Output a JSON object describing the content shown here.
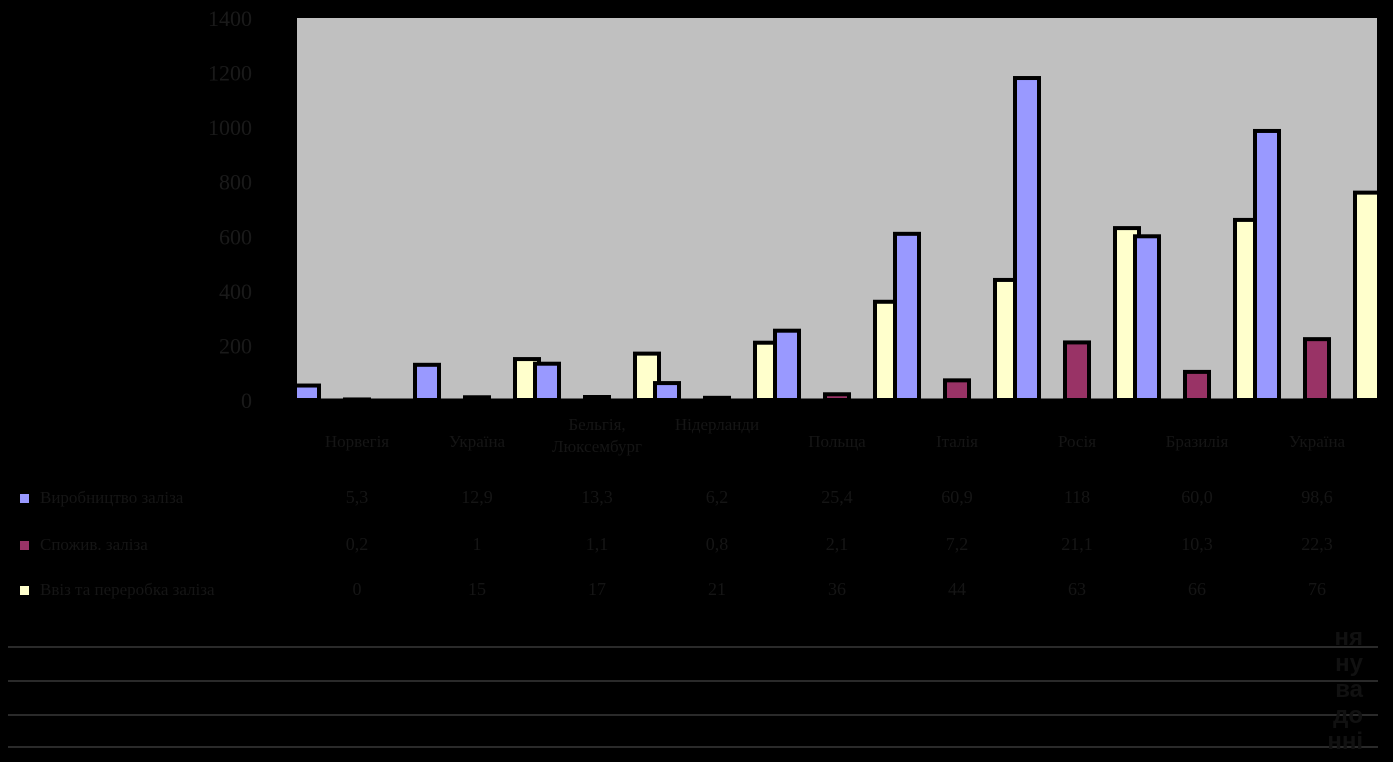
{
  "chart_data": {
    "type": "bar",
    "categories": [
      "Норвегія",
      "Україна",
      "Бельгія, Люксембург",
      "Нідерланди",
      "Польща",
      "Італія",
      "Росія",
      "Бразилія",
      "Україна"
    ],
    "category_lines": [
      [
        "Норвегія"
      ],
      [
        "Україна"
      ],
      [
        "Бельгія,",
        "Люксембург"
      ],
      [
        "Нідерланди",
        ""
      ],
      [
        "Польща"
      ],
      [
        "Італія"
      ],
      [
        "Росія"
      ],
      [
        "Бразилія"
      ],
      [
        "Україна"
      ]
    ],
    "series": [
      {
        "name": "Виробництво заліза",
        "color": "#9999ff",
        "values": [
          5.3,
          12.9,
          13.3,
          6.2,
          25.4,
          60.9,
          118,
          60,
          98.6
        ]
      },
      {
        "name": "Спожив. заліза",
        "color": "#993366",
        "values": [
          0.2,
          1,
          1.1,
          0.8,
          2.1,
          7.2,
          21.1,
          10.3,
          22.3
        ]
      },
      {
        "name": "Ввіз та переробка заліза",
        "color": "#ffffcc",
        "values": [
          0,
          15,
          17,
          21,
          36,
          44,
          63,
          66,
          76
        ]
      }
    ],
    "table": {
      "rows": [
        [
          "5,3",
          "12,9",
          "13,3",
          "6,2",
          "25,4",
          "60,9",
          "118",
          "60,0",
          "98,6"
        ],
        [
          "0,2",
          "1",
          "1,1",
          "0,8",
          "2,1",
          "7,2",
          "21,1",
          "10,3",
          "22,3"
        ],
        [
          "0",
          "15",
          "17",
          "21",
          "36",
          "44",
          "63",
          "66",
          "76"
        ]
      ]
    },
    "yticks": [
      "0",
      "200",
      "400",
      "600",
      "800",
      "1000",
      "1200",
      "1400"
    ],
    "ylim": [
      0,
      140
    ],
    "title": "",
    "xlabel": "",
    "ylabel": "",
    "grid": false,
    "legend": "left-table"
  },
  "caption": {
    "right_fragments": [
      "ня",
      "ну",
      "ва",
      "до",
      "нні"
    ]
  }
}
